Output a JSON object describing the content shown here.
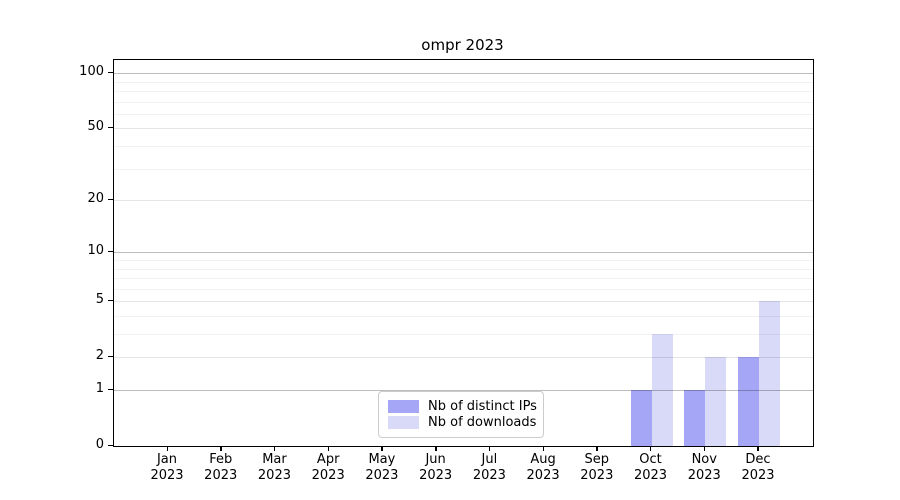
{
  "title": "ompr 2023",
  "chart_data": {
    "type": "bar",
    "title": "ompr 2023",
    "categories": [
      "Jan",
      "Feb",
      "Mar",
      "Apr",
      "May",
      "Jun",
      "Jul",
      "Aug",
      "Sep",
      "Oct",
      "Nov",
      "Dec"
    ],
    "category_year": "2023",
    "x_tick_labels": [
      "Jan 2023",
      "Feb 2023",
      "Mar 2023",
      "Apr 2023",
      "May 2023",
      "Jun 2023",
      "Jul 2023",
      "Aug 2023",
      "Sep 2023",
      "Oct 2023",
      "Nov 2023",
      "Dec 2023"
    ],
    "series": [
      {
        "name": "Nb of distinct IPs",
        "color": "#a6a6f6",
        "values": [
          0,
          0,
          0,
          0,
          0,
          0,
          0,
          0,
          0,
          1,
          1,
          2
        ]
      },
      {
        "name": "Nb of downloads",
        "color": "#d9d9f8",
        "values": [
          0,
          0,
          0,
          0,
          0,
          0,
          0,
          0,
          0,
          3,
          2,
          5
        ]
      }
    ],
    "y_scale": "log1p",
    "y_ticks_major": [
      0,
      1,
      2,
      5,
      10,
      20,
      50,
      100
    ],
    "y_ticks_emphasis": [
      1,
      10,
      100
    ],
    "y_ticks_minor": [
      3,
      4,
      6,
      7,
      8,
      9,
      30,
      40,
      60,
      70,
      80,
      90
    ],
    "ylim": [
      0,
      118
    ],
    "grid": "horizontal",
    "xlabel": "",
    "ylabel": "",
    "legend": {
      "position": "lower center",
      "items": [
        {
          "label": "Nb of distinct IPs",
          "color": "#a6a6f6"
        },
        {
          "label": "Nb of downloads",
          "color": "#d9d9f8"
        }
      ]
    }
  }
}
